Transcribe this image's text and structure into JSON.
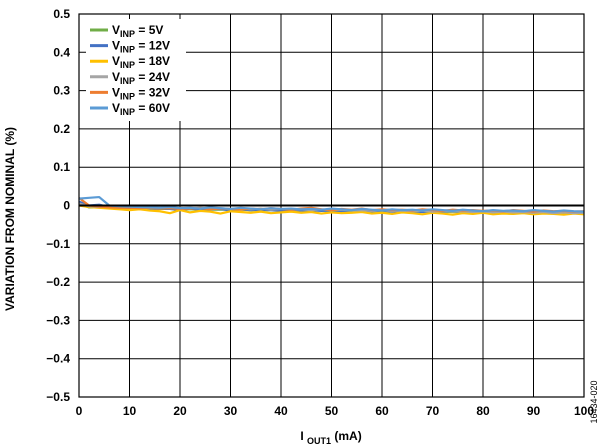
{
  "chart_data": {
    "type": "line",
    "xlabel": {
      "main": "I",
      "sub": "OUT1",
      "unit": " (mA)"
    },
    "ylabel": "VARIATION FROM NOMINAL (%)",
    "xlim": [
      0,
      100
    ],
    "ylim": [
      -0.5,
      0.5
    ],
    "xticks": [
      0,
      10,
      20,
      30,
      40,
      50,
      60,
      70,
      80,
      90,
      100
    ],
    "yticks": [
      "0.5",
      "0.4",
      "0.3",
      "0.2",
      "0.1",
      "0",
      "−0.1",
      "−0.2",
      "−0.3",
      "−0.4",
      "−0.5"
    ],
    "ytick_values": [
      0.5,
      0.4,
      0.3,
      0.2,
      0.1,
      0,
      -0.1,
      -0.2,
      -0.3,
      -0.4,
      -0.5
    ],
    "grid": true,
    "legend_position": "top-left",
    "figure_id": "16434-020",
    "x": [
      0,
      2,
      4,
      6,
      8,
      10,
      12,
      14,
      16,
      18,
      20,
      22,
      24,
      26,
      28,
      30,
      32,
      34,
      36,
      38,
      40,
      42,
      44,
      46,
      48,
      50,
      52,
      54,
      56,
      58,
      60,
      62,
      64,
      66,
      68,
      70,
      72,
      74,
      76,
      78,
      80,
      82,
      84,
      86,
      88,
      90,
      92,
      94,
      96,
      98,
      100
    ],
    "series": [
      {
        "name": "5V",
        "color": "#70ad47",
        "values": [
          0.005,
          -0.005,
          -0.005,
          -0.006,
          -0.007,
          -0.008,
          -0.008,
          -0.008,
          -0.009,
          -0.009,
          -0.01,
          -0.01,
          -0.01,
          -0.011,
          -0.011,
          -0.011,
          -0.011,
          -0.012,
          -0.012,
          -0.012,
          -0.012,
          -0.013,
          -0.013,
          -0.013,
          -0.013,
          -0.014,
          -0.014,
          -0.014,
          -0.014,
          -0.015,
          -0.015,
          -0.015,
          -0.015,
          -0.016,
          -0.016,
          -0.016,
          -0.016,
          -0.017,
          -0.017,
          -0.017,
          -0.017,
          -0.018,
          -0.018,
          -0.018,
          -0.018,
          -0.019,
          -0.019,
          -0.019,
          -0.019,
          -0.02,
          -0.02
        ]
      },
      {
        "name": "12V",
        "color": "#4472c4",
        "values": [
          0.01,
          0.0,
          0.002,
          -0.004,
          -0.006,
          -0.008,
          -0.007,
          -0.01,
          -0.008,
          -0.009,
          -0.012,
          -0.008,
          -0.011,
          -0.01,
          -0.009,
          -0.013,
          -0.01,
          -0.012,
          -0.011,
          -0.012,
          -0.014,
          -0.011,
          -0.013,
          -0.012,
          -0.014,
          -0.013,
          -0.016,
          -0.012,
          -0.014,
          -0.015,
          -0.013,
          -0.016,
          -0.014,
          -0.015,
          -0.017,
          -0.014,
          -0.016,
          -0.015,
          -0.017,
          -0.016,
          -0.018,
          -0.016,
          -0.017,
          -0.018,
          -0.016,
          -0.018,
          -0.019,
          -0.017,
          -0.019,
          -0.018,
          -0.02
        ]
      },
      {
        "name": "18V",
        "color": "#ffc000",
        "values": [
          0.0,
          -0.004,
          -0.006,
          -0.008,
          -0.01,
          -0.012,
          -0.01,
          -0.013,
          -0.015,
          -0.02,
          -0.012,
          -0.018,
          -0.014,
          -0.016,
          -0.021,
          -0.015,
          -0.017,
          -0.019,
          -0.016,
          -0.02,
          -0.018,
          -0.016,
          -0.019,
          -0.017,
          -0.021,
          -0.018,
          -0.02,
          -0.019,
          -0.017,
          -0.021,
          -0.019,
          -0.022,
          -0.018,
          -0.02,
          -0.023,
          -0.019,
          -0.021,
          -0.024,
          -0.02,
          -0.022,
          -0.019,
          -0.023,
          -0.021,
          -0.022,
          -0.02,
          -0.023,
          -0.021,
          -0.022,
          -0.024,
          -0.021,
          -0.023
        ]
      },
      {
        "name": "24V",
        "color": "#a5a5a5",
        "values": [
          0.005,
          -0.002,
          -0.004,
          -0.003,
          -0.004,
          -0.005,
          -0.004,
          -0.006,
          -0.005,
          -0.007,
          -0.006,
          -0.008,
          -0.006,
          -0.008,
          -0.007,
          -0.009,
          -0.008,
          -0.01,
          -0.008,
          -0.011,
          -0.009,
          -0.011,
          -0.01,
          -0.012,
          -0.01,
          -0.012,
          -0.011,
          -0.013,
          -0.012,
          -0.014,
          -0.012,
          -0.014,
          -0.013,
          -0.015,
          -0.013,
          -0.016,
          -0.014,
          -0.016,
          -0.015,
          -0.017,
          -0.015,
          -0.018,
          -0.016,
          -0.018,
          -0.017,
          -0.019,
          -0.017,
          -0.02,
          -0.018,
          -0.02,
          -0.019
        ]
      },
      {
        "name": "32V",
        "color": "#ed7d31",
        "values": [
          0.02,
          0.0,
          -0.003,
          -0.005,
          -0.006,
          -0.006,
          -0.007,
          -0.006,
          -0.008,
          -0.007,
          -0.009,
          -0.008,
          -0.007,
          -0.01,
          -0.008,
          -0.009,
          -0.011,
          -0.008,
          -0.01,
          -0.007,
          -0.009,
          -0.011,
          -0.008,
          -0.006,
          -0.01,
          -0.012,
          -0.009,
          -0.011,
          -0.008,
          -0.012,
          -0.01,
          -0.012,
          -0.011,
          -0.013,
          -0.01,
          -0.012,
          -0.014,
          -0.011,
          -0.013,
          -0.012,
          -0.014,
          -0.013,
          -0.015,
          -0.012,
          -0.014,
          -0.016,
          -0.013,
          -0.015,
          -0.014,
          -0.016,
          -0.015
        ]
      },
      {
        "name": "60V",
        "color": "#5b9bd5",
        "values": [
          0.018,
          0.02,
          0.022,
          0.0,
          -0.002,
          -0.003,
          -0.004,
          -0.005,
          -0.006,
          -0.004,
          -0.007,
          -0.006,
          -0.008,
          -0.005,
          -0.007,
          -0.009,
          -0.006,
          -0.008,
          -0.01,
          -0.007,
          -0.009,
          -0.008,
          -0.01,
          -0.009,
          -0.011,
          -0.008,
          -0.01,
          -0.012,
          -0.009,
          -0.011,
          -0.013,
          -0.01,
          -0.012,
          -0.011,
          -0.013,
          -0.01,
          -0.012,
          -0.014,
          -0.011,
          -0.013,
          -0.015,
          -0.012,
          -0.014,
          -0.013,
          -0.015,
          -0.012,
          -0.014,
          -0.016,
          -0.013,
          -0.015,
          -0.016
        ]
      }
    ]
  }
}
